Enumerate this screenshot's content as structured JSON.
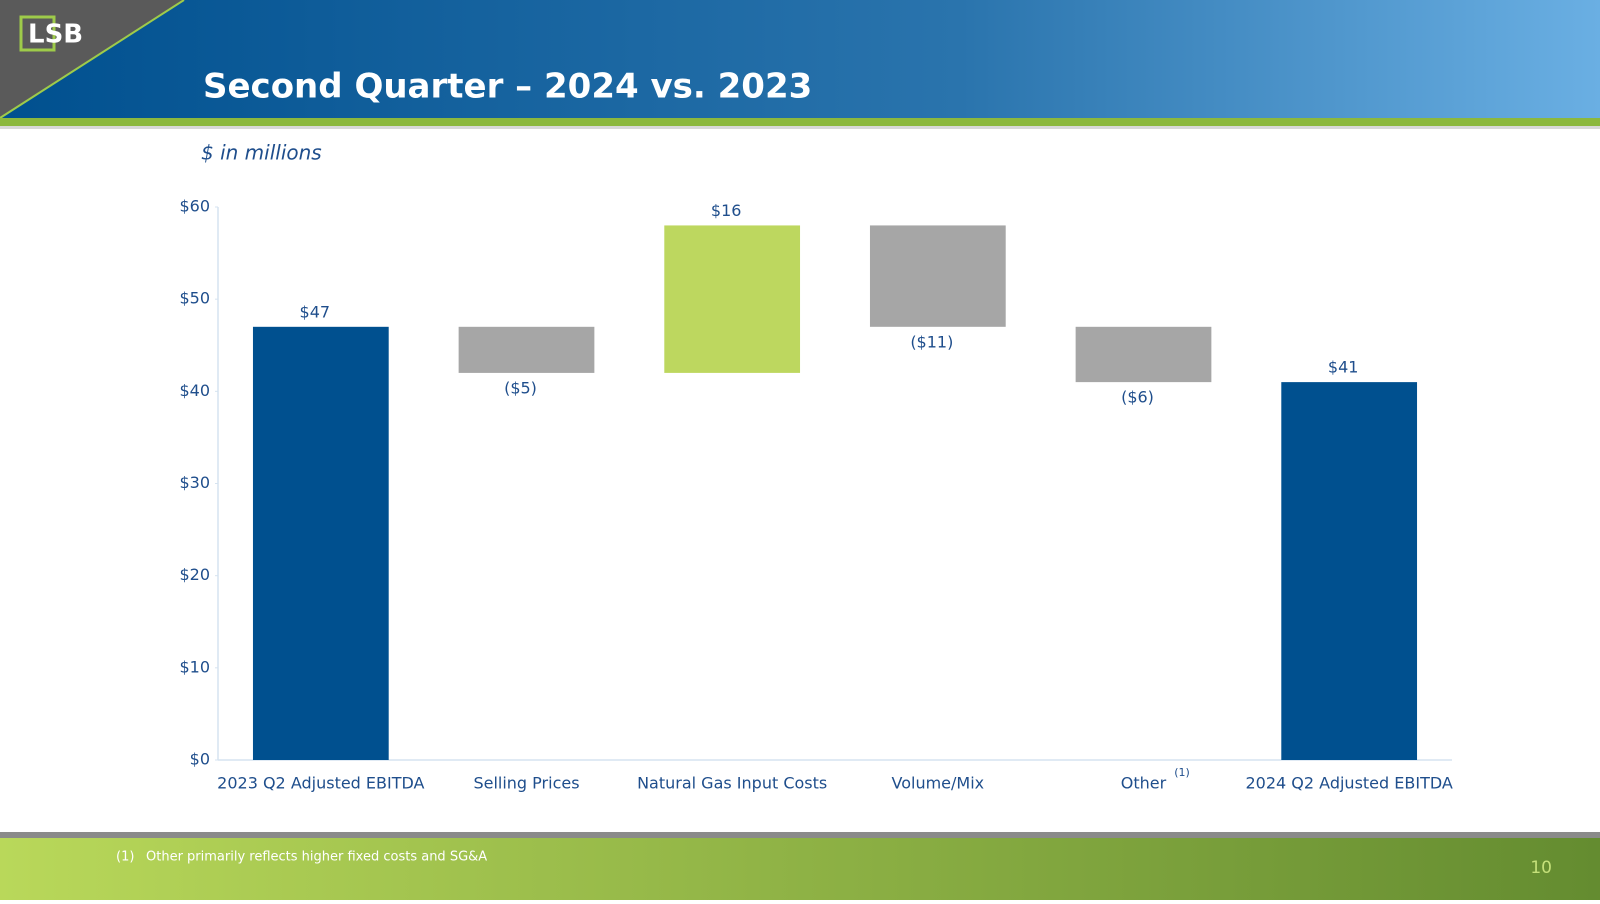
{
  "header": {
    "logo": "LSB",
    "title": "Second Quarter – 2024 vs. 2023"
  },
  "chart_data": {
    "type": "waterfall",
    "subtitle": "$ in millions",
    "categories": [
      "2023 Q2 Adjusted EBITDA",
      "Selling Prices",
      "Natural Gas Input Costs",
      "Volume/Mix",
      "Other",
      "2024 Q2 Adjusted EBITDA"
    ],
    "category_notes": [
      null,
      null,
      null,
      null,
      "(1)",
      null
    ],
    "values": [
      47,
      -5,
      16,
      -11,
      -6,
      41
    ],
    "value_labels": [
      "$47",
      "($5)",
      "$16",
      "($11)",
      "($6)",
      "$41"
    ],
    "is_total": [
      true,
      false,
      false,
      false,
      false,
      true
    ],
    "colors": [
      "#00508f",
      "#a6a6a6",
      "#bdd75f",
      "#a6a6a6",
      "#a6a6a6",
      "#00508f"
    ],
    "ylim": [
      0,
      60
    ],
    "yticks": [
      {
        "value": 0,
        "label": "$0"
      },
      {
        "value": 10,
        "label": "$10"
      },
      {
        "value": 20,
        "label": "$20"
      },
      {
        "value": 30,
        "label": "$30"
      },
      {
        "value": 40,
        "label": "$40"
      },
      {
        "value": 50,
        "label": "$50"
      },
      {
        "value": 60,
        "label": "$60"
      }
    ],
    "grid": false
  },
  "footnote": {
    "marker": "(1)",
    "text": "Other primarily reflects higher fixed costs and SG&A"
  },
  "page_number": "10"
}
